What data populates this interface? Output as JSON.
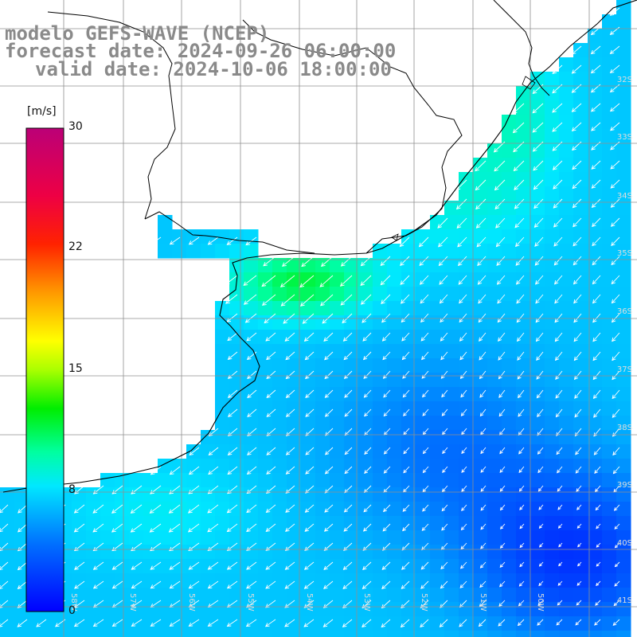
{
  "titles": {
    "model": "modelo GEFS-WAVE (NCEP)",
    "forecast": "forecast date: 2024-09-26 06:00:00",
    "valid": "valid date: 2024-10-06 18:00:00"
  },
  "colorbar": {
    "unit": "[m/s]",
    "ticks": [
      "30",
      "22",
      "15",
      "8",
      "0"
    ],
    "range": [
      0,
      30
    ],
    "tick_values": [
      30,
      22,
      15,
      8,
      0
    ],
    "colors": [
      "#0000ff",
      "#00a0ff",
      "#00ffff",
      "#00ff7f",
      "#00dd00",
      "#ffff00",
      "#ff9900",
      "#ff0000",
      "#cc0066",
      "#aa00aa"
    ]
  },
  "map": {
    "land_color": "#ffffff",
    "coast_color": "#000000",
    "grid_color": "#8f8f8f",
    "lat_labels": [
      "32S",
      "33S",
      "34S",
      "35S",
      "36S",
      "37S",
      "38S",
      "39S",
      "40S",
      "41S"
    ],
    "lon_labels": [
      "58W",
      "57W",
      "56W",
      "55W",
      "54W",
      "53W",
      "52W",
      "51W",
      "50W"
    ],
    "field": "wind speed with direction arrows"
  }
}
